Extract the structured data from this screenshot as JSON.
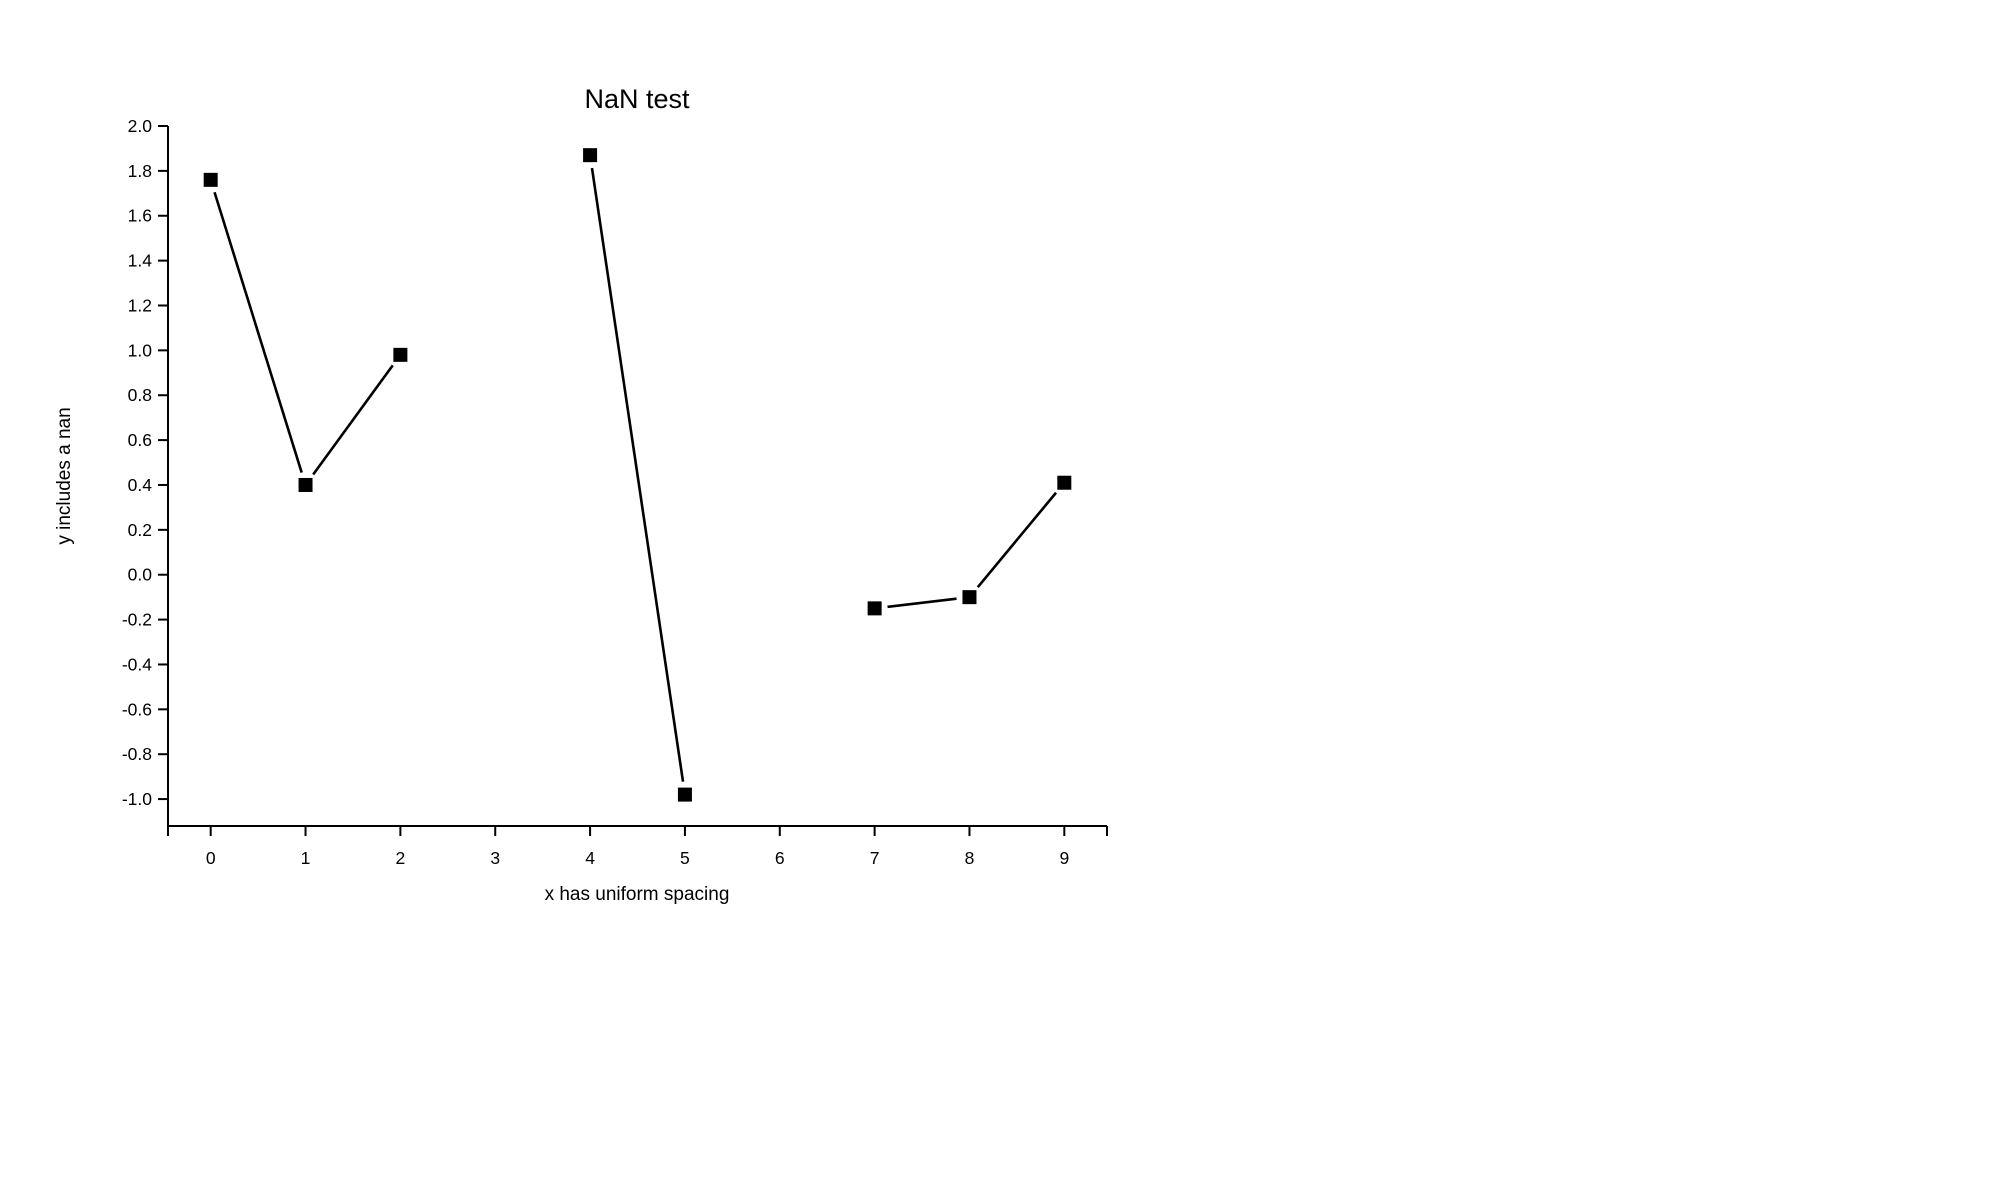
{
  "chart_data": {
    "type": "line",
    "title": "NaN test",
    "xlabel": "x has uniform spacing",
    "ylabel": "y includes a nan",
    "x": [
      0,
      1,
      2,
      3,
      4,
      5,
      6,
      7,
      8,
      9
    ],
    "series": [
      {
        "values": [
          1.76,
          0.4,
          0.98,
          null,
          1.87,
          -0.98,
          null,
          -0.15,
          -0.1,
          0.41
        ],
        "color": "#000000",
        "marker": "square"
      }
    ],
    "xlim": [
      -0.45,
      9.45
    ],
    "ylim": [
      -1.12,
      2.0
    ],
    "xticks": [
      0,
      1,
      2,
      3,
      4,
      5,
      6,
      7,
      8,
      9
    ],
    "yticks": [
      2.0,
      1.8,
      1.6,
      1.4,
      1.2,
      1.0,
      0.8,
      0.6,
      0.4,
      0.2,
      0.0,
      -0.2,
      -0.4,
      -0.6,
      -0.8,
      -1.0
    ],
    "grid": false,
    "legend": "none"
  }
}
